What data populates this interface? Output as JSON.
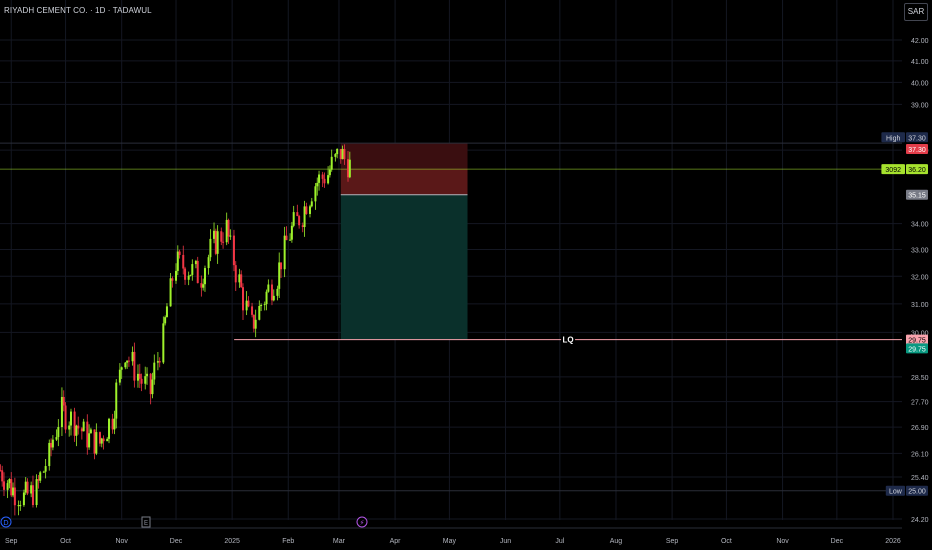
{
  "header": {
    "symbol_title": "RIYADH CEMENT CO. · 1D · TADAWUL",
    "currency_button": "SAR"
  },
  "colors": {
    "background": "#000000",
    "up_candle": "#9ef22b",
    "down_candle": "#f23645",
    "short_stop_zone": "#5a1818",
    "short_target_zone": "#0a302b",
    "current_price_line": "#a6e22e",
    "lq_line": "#f8a3ad"
  },
  "price_axis": {
    "ticks": [
      "42.00",
      "41.00",
      "40.00",
      "39.00",
      "37.00",
      "34.00",
      "33.00",
      "32.00",
      "31.00",
      "30.00",
      "28.50",
      "27.70",
      "26.90",
      "26.10",
      "25.40",
      "24.20"
    ]
  },
  "time_axis": {
    "labels": [
      "Sep",
      "Oct",
      "Nov",
      "Dec",
      "2025",
      "Feb",
      "Mar",
      "Apr",
      "May",
      "Jun",
      "Jul",
      "Aug",
      "Sep",
      "Oct",
      "Nov",
      "Dec",
      "2026"
    ]
  },
  "price_badges": {
    "high": {
      "tag": "High",
      "value": "37.30"
    },
    "high_red": {
      "value": "37.30"
    },
    "current": {
      "tag": "3092",
      "value": "36.20"
    },
    "target_gray": {
      "value": "35.15"
    },
    "lq_red": {
      "value": "29.75"
    },
    "lq_green": {
      "value": "29.75"
    },
    "low": {
      "tag": "Low",
      "value": "25.00"
    }
  },
  "annotations": {
    "lq_label": "LQ"
  },
  "event_markers": [
    {
      "icon": "dividend-icon",
      "symbol": "D"
    },
    {
      "icon": "earnings-icon",
      "symbol": "E"
    },
    {
      "icon": "lightning-icon",
      "symbol": "⚡"
    }
  ],
  "chart_data": {
    "type": "candlestick",
    "title": "RIYADH CEMENT CO. · 1D · TADAWUL",
    "currency": "SAR",
    "x_range": [
      "2024-08",
      "2026-01"
    ],
    "ylim": [
      24.2,
      42.0
    ],
    "y_scale": "log",
    "grid": true,
    "series": [
      {
        "name": "",
        "points": [
          [
            "2024-08-26",
            25.6
          ],
          [
            "2024-09-01",
            25.1
          ],
          [
            "2024-09-08",
            24.8
          ],
          [
            "2024-09-15",
            25.0
          ],
          [
            "2024-09-22",
            26.0
          ],
          [
            "2024-09-29",
            27.4
          ],
          [
            "2024-10-06",
            27.1
          ],
          [
            "2024-10-13",
            26.6
          ],
          [
            "2024-10-20",
            26.4
          ],
          [
            "2024-10-27",
            27.2
          ],
          [
            "2024-11-03",
            29.4
          ],
          [
            "2024-11-10",
            28.6
          ],
          [
            "2024-11-17",
            28.0
          ],
          [
            "2024-11-24",
            29.8
          ],
          [
            "2024-12-01",
            32.5
          ],
          [
            "2024-12-08",
            32.3
          ],
          [
            "2024-12-15",
            32.0
          ],
          [
            "2024-12-22",
            33.2
          ],
          [
            "2024-12-29",
            33.8
          ],
          [
            "2025-01-05",
            31.8
          ],
          [
            "2025-01-12",
            30.2
          ],
          [
            "2025-01-19",
            31.2
          ],
          [
            "2025-01-26",
            32.0
          ],
          [
            "2025-02-02",
            33.6
          ],
          [
            "2025-02-09",
            34.4
          ],
          [
            "2025-02-16",
            35.6
          ],
          [
            "2025-02-23",
            36.0
          ],
          [
            "2025-03-02",
            36.9
          ],
          [
            "2025-03-09",
            36.2
          ]
        ]
      }
    ],
    "position": {
      "type": "short",
      "start": "2025-03-02",
      "end": "2025-05-11",
      "stop": 37.3,
      "entry": 36.2,
      "target": 29.75
    },
    "horizontal_lines": [
      {
        "label": "LQ",
        "price": 29.75,
        "start": "2025-01-01"
      },
      {
        "label": "High",
        "price": 37.3
      },
      {
        "label": "Low",
        "price": 25.0
      }
    ]
  }
}
